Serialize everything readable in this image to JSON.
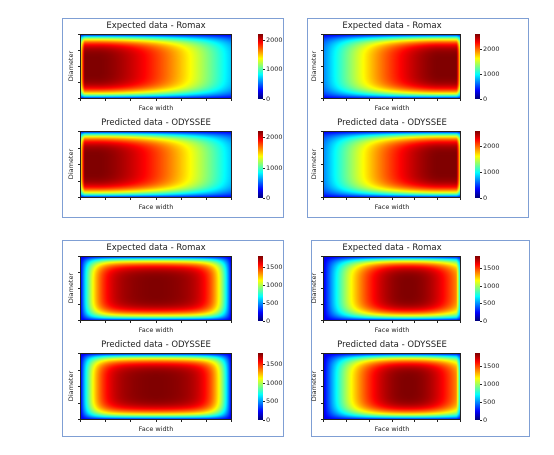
{
  "figure": {
    "colormap": "jet",
    "panels": [
      {
        "id": "top-left",
        "plots": [
          {
            "title": "Expected data - Romax",
            "xlabel": "Face width",
            "ylabel": "Diameter",
            "cb_ticks": [
              0,
              1000,
              2000
            ],
            "cb_max": 2200,
            "peak": "left"
          },
          {
            "title": "Predicted data - ODYSSEE",
            "xlabel": "Face width",
            "ylabel": "Diameter",
            "cb_ticks": [
              0,
              1000,
              2000
            ],
            "cb_max": 2200,
            "peak": "left"
          }
        ]
      },
      {
        "id": "top-right",
        "plots": [
          {
            "title": "Expected data - Romax",
            "xlabel": "Face width",
            "ylabel": "Diameter",
            "cb_ticks": [
              0,
              1000,
              2000
            ],
            "cb_max": 2600,
            "peak": "right"
          },
          {
            "title": "Predicted data - ODYSSEE",
            "xlabel": "Face width",
            "ylabel": "Diameter",
            "cb_ticks": [
              0,
              1000,
              2000
            ],
            "cb_max": 2600,
            "peak": "right"
          }
        ]
      },
      {
        "id": "bottom-left",
        "plots": [
          {
            "title": "Expected data - Romax",
            "xlabel": "Face width",
            "ylabel": "Diameter",
            "cb_ticks": [
              0,
              500,
              1000,
              1500
            ],
            "cb_max": 1800,
            "peak": "center"
          },
          {
            "title": "Predicted data - ODYSSEE",
            "xlabel": "Face width",
            "ylabel": "Diameter",
            "cb_ticks": [
              0,
              500,
              1000,
              1500
            ],
            "cb_max": 1800,
            "peak": "center"
          }
        ]
      },
      {
        "id": "bottom-right",
        "plots": [
          {
            "title": "Expected data - Romax",
            "xlabel": "Face width",
            "ylabel": "Diameter",
            "cb_ticks": [
              0,
              500,
              1000,
              1500
            ],
            "cb_max": 1850,
            "peak": "center-right"
          },
          {
            "title": "Predicted data - ODYSSEE",
            "xlabel": "Face width",
            "ylabel": "Diameter",
            "cb_ticks": [
              0,
              500,
              1000,
              1500
            ],
            "cb_max": 1850,
            "peak": "center-right"
          }
        ]
      }
    ]
  },
  "chart_data": [
    {
      "type": "heatmap",
      "title": "Expected data - Romax",
      "xlabel": "Face width",
      "ylabel": "Diameter",
      "colorbar_ticks": [
        0,
        1000,
        2000
      ],
      "colorbar_range": [
        0,
        2200
      ],
      "peak_location": "left"
    },
    {
      "type": "heatmap",
      "title": "Predicted data - ODYSSEE",
      "xlabel": "Face width",
      "ylabel": "Diameter",
      "colorbar_ticks": [
        0,
        1000,
        2000
      ],
      "colorbar_range": [
        0,
        2200
      ],
      "peak_location": "left"
    },
    {
      "type": "heatmap",
      "title": "Expected data - Romax",
      "xlabel": "Face width",
      "ylabel": "Diameter",
      "colorbar_ticks": [
        0,
        1000,
        2000
      ],
      "colorbar_range": [
        0,
        2600
      ],
      "peak_location": "right"
    },
    {
      "type": "heatmap",
      "title": "Predicted data - ODYSSEE",
      "xlabel": "Face width",
      "ylabel": "Diameter",
      "colorbar_ticks": [
        0,
        1000,
        2000
      ],
      "colorbar_range": [
        0,
        2600
      ],
      "peak_location": "right"
    },
    {
      "type": "heatmap",
      "title": "Expected data - Romax",
      "xlabel": "Face width",
      "ylabel": "Diameter",
      "colorbar_ticks": [
        0,
        500,
        1000,
        1500
      ],
      "colorbar_range": [
        0,
        1800
      ],
      "peak_location": "center"
    },
    {
      "type": "heatmap",
      "title": "Predicted data - ODYSSEE",
      "xlabel": "Face width",
      "ylabel": "Diameter",
      "colorbar_ticks": [
        0,
        500,
        1000,
        1500
      ],
      "colorbar_range": [
        0,
        1800
      ],
      "peak_location": "center"
    },
    {
      "type": "heatmap",
      "title": "Expected data - Romax",
      "xlabel": "Face width",
      "ylabel": "Diameter",
      "colorbar_ticks": [
        0,
        500,
        1000,
        1500
      ],
      "colorbar_range": [
        0,
        1850
      ],
      "peak_location": "center-right"
    },
    {
      "type": "heatmap",
      "title": "Predicted data - ODYSSEE",
      "xlabel": "Face width",
      "ylabel": "Diameter",
      "colorbar_ticks": [
        0,
        500,
        1000,
        1500
      ],
      "colorbar_range": [
        0,
        1850
      ],
      "peak_location": "center-right"
    }
  ]
}
